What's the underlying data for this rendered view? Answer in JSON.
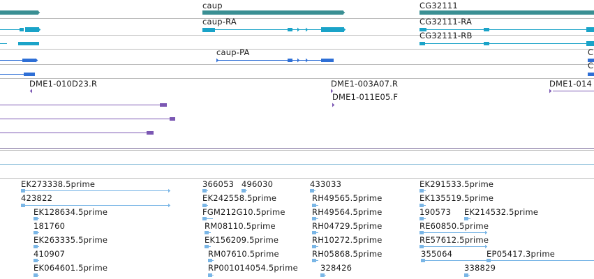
{
  "colors": {
    "gene": "#3a8f93",
    "transcript_rna": "#1aa3c8",
    "transcript_prot": "#2e6fd6",
    "clone": "#7b57b3",
    "est": "#7ab6e6",
    "divider": "#bcbcbc",
    "track_line": "#7a6b9a",
    "track_line_blue": "#7fb7d6"
  },
  "icons": {
    "arrow_right": "triangle-right-icon",
    "arrow_left": "triangle-left-icon"
  },
  "gene_track": {
    "genes": [
      {
        "id": "g0",
        "label": ""
      },
      {
        "id": "g1",
        "label": "caup"
      },
      {
        "id": "g2",
        "label": "CG32111"
      }
    ]
  },
  "rna_track": {
    "transcripts": [
      {
        "id": "r1",
        "label": "caup-RA"
      },
      {
        "id": "r2",
        "label": "CG32111-RA"
      },
      {
        "id": "r3",
        "label": "CG32111-RB"
      }
    ]
  },
  "protein_track": {
    "transcripts": [
      {
        "id": "p1",
        "label": "caup-PA"
      },
      {
        "id": "p2",
        "label": "C"
      },
      {
        "id": "p3",
        "label": "C"
      }
    ]
  },
  "clone_track": {
    "clones": [
      {
        "id": "c1",
        "label": "DME1-010D23.R"
      },
      {
        "id": "c2",
        "label": "DME1-003A07.R"
      },
      {
        "id": "c3",
        "label": "DME1-011E05.F"
      },
      {
        "id": "c4",
        "label": "DME1-014"
      }
    ]
  },
  "est_track": {
    "ests": [
      {
        "id": "e1",
        "label": "EK273338.5prime"
      },
      {
        "id": "e2",
        "label": "423822"
      },
      {
        "id": "e3",
        "label": "EK128634.5prime"
      },
      {
        "id": "e4",
        "label": "181760"
      },
      {
        "id": "e5",
        "label": "EK263335.5prime"
      },
      {
        "id": "e6",
        "label": "410907"
      },
      {
        "id": "e7",
        "label": "EK064601.5prime"
      },
      {
        "id": "e8",
        "label": "366053"
      },
      {
        "id": "e9",
        "label": "496030"
      },
      {
        "id": "e10",
        "label": "EK242558.5prime"
      },
      {
        "id": "e11",
        "label": "FGM212G10.5prime"
      },
      {
        "id": "e12",
        "label": "RM08110.5prime"
      },
      {
        "id": "e13",
        "label": "EK156209.5prime"
      },
      {
        "id": "e14",
        "label": "RM07610.5prime"
      },
      {
        "id": "e15",
        "label": "RP001014054.5prime"
      },
      {
        "id": "e16",
        "label": "433033"
      },
      {
        "id": "e17",
        "label": "RH49565.5prime"
      },
      {
        "id": "e18",
        "label": "RH49564.5prime"
      },
      {
        "id": "e19",
        "label": "RH04729.5prime"
      },
      {
        "id": "e20",
        "label": "RH10272.5prime"
      },
      {
        "id": "e21",
        "label": "RH05868.5prime"
      },
      {
        "id": "e22",
        "label": "328426"
      },
      {
        "id": "e23",
        "label": "EK291533.5prime"
      },
      {
        "id": "e24",
        "label": "EK135519.5prime"
      },
      {
        "id": "e25",
        "label": "190573"
      },
      {
        "id": "e26",
        "label": "EK214532.5prime"
      },
      {
        "id": "e27",
        "label": "RE60850.5prime"
      },
      {
        "id": "e28",
        "label": "RE57612.5prime"
      },
      {
        "id": "e29",
        "label": "355064"
      },
      {
        "id": "e30",
        "label": "EP05417.3prime"
      },
      {
        "id": "e31",
        "label": "338829"
      }
    ]
  }
}
